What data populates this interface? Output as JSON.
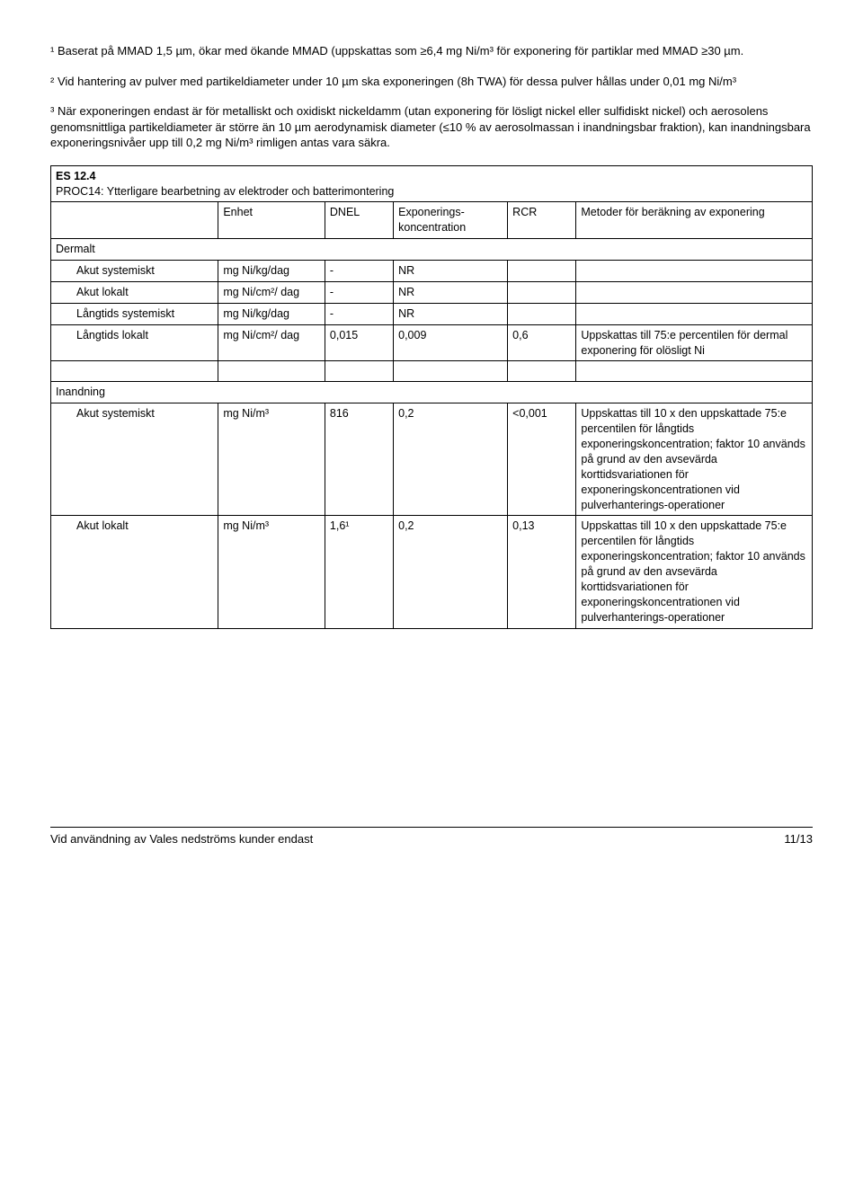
{
  "footnotes": {
    "fn1": "¹ Baserat på MMAD 1,5 µm, ökar med ökande MMAD (uppskattas som ≥6,4 mg Ni/m³ för exponering för partiklar med MMAD ≥30 µm.",
    "fn2": "² Vid hantering av pulver med partikeldiameter under 10 µm ska exponeringen (8h TWA) för dessa pulver hållas under 0,01 mg Ni/m³",
    "fn3": "³ När exponeringen endast är för metalliskt och oxidiskt nickeldamm (utan exponering för lösligt nickel eller sulfidiskt nickel) och aerosolens genomsnittliga partikeldiameter är större än 10 µm aerodynamisk diameter (≤10 % av aerosolmassan i inandningsbar fraktion), kan inandningsbara exponeringsnivåer upp till 0,2 mg Ni/m³ rimligen antas vara säkra."
  },
  "table": {
    "title_line1": "ES 12.4",
    "title_line2": "PROC14: Ytterligare bearbetning av elektroder och batterimontering",
    "columns": {
      "c0": "",
      "c1": "Enhet",
      "c2": "DNEL",
      "c3": "Exponerings-koncentration",
      "c4": "RCR",
      "c5": "Metoder för beräkning av exponering"
    },
    "dermalt_label": "Dermalt",
    "dermalt": {
      "r1": {
        "name": "Akut systemiskt",
        "unit": "mg Ni/kg/dag",
        "dnel": "-",
        "exp": "NR",
        "rcr": "",
        "meth": ""
      },
      "r2": {
        "name": "Akut lokalt",
        "unit": "mg Ni/cm²/ dag",
        "dnel": "-",
        "exp": "NR",
        "rcr": "",
        "meth": ""
      },
      "r3": {
        "name": "Långtids systemiskt",
        "unit": "mg Ni/kg/dag",
        "dnel": "-",
        "exp": "NR",
        "rcr": "",
        "meth": ""
      },
      "r4": {
        "name": "Långtids lokalt",
        "unit": "mg Ni/cm²/ dag",
        "dnel": "0,015",
        "exp": "0,009",
        "rcr": "0,6",
        "meth": "Uppskattas till 75:e percentilen för dermal exponering för olösligt Ni"
      }
    },
    "inandning_label": "Inandning",
    "inandning": {
      "r1": {
        "name": "Akut systemiskt",
        "unit": "mg Ni/m³",
        "dnel": "816",
        "exp": "0,2",
        "rcr": "<0,001",
        "meth": "Uppskattas till 10 x den uppskattade 75:e percentilen för långtids exponeringskoncentration; faktor 10 används på grund av den avsevärda korttidsvariationen för exponeringskoncentrationen vid pulverhanterings-operationer"
      },
      "r2": {
        "name": "Akut lokalt",
        "unit": "mg Ni/m³",
        "dnel": "1,6¹",
        "exp": "0,2",
        "rcr": "0,13",
        "meth": "Uppskattas till 10 x den uppskattade 75:e percentilen för långtids exponeringskoncentration; faktor 10 används på grund av den avsevärda korttidsvariationen för exponeringskoncentrationen vid pulverhanterings-operationer"
      }
    }
  },
  "footer": {
    "left": "Vid användning av Vales nedströms kunder endast",
    "right": "11/13"
  },
  "col_widths": [
    "22%",
    "14%",
    "9%",
    "15%",
    "9%",
    "31%"
  ]
}
